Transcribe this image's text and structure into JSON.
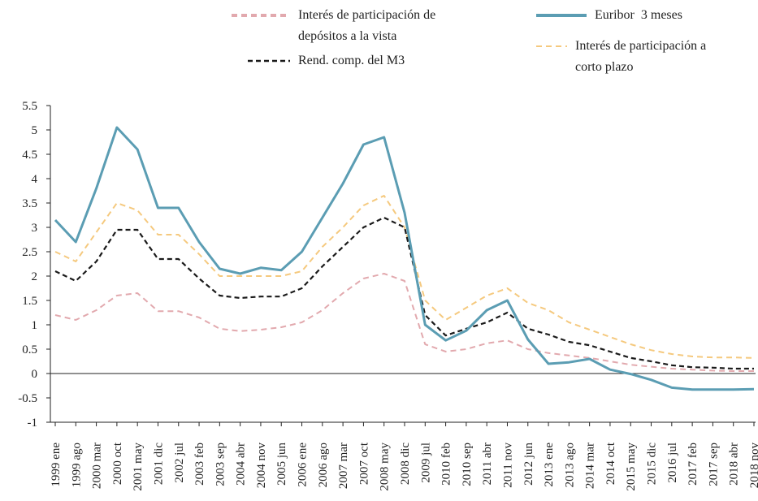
{
  "chart_data": {
    "type": "line",
    "categories": [
      "1999 ene",
      "1999 ago",
      "2000 mar",
      "2000 oct",
      "2001 may",
      "2001 dic",
      "2002 jul",
      "2003 feb",
      "2003 sep",
      "2004 abr",
      "2004 nov",
      "2005 jun",
      "2006 ene",
      "2006 ago",
      "2007 mar",
      "2007 oct",
      "2008 may",
      "2008 dic",
      "2009 jul",
      "2010 feb",
      "2010 sep",
      "2011 abr",
      "2011 nov",
      "2012 jun",
      "2013 ene",
      "2013 ago",
      "2014 mar",
      "2014 oct",
      "2015 may",
      "2015 dic",
      "2016 jul",
      "2017 feb",
      "2017 sep",
      "2018 abr",
      "2018 nov"
    ],
    "series": [
      {
        "name": "Interés de participación de depósitos a la vista",
        "color": "#e2a9ae",
        "style": "dashed",
        "values": [
          1.2,
          1.1,
          1.3,
          1.6,
          1.65,
          1.28,
          1.28,
          1.15,
          0.92,
          0.87,
          0.9,
          0.95,
          1.05,
          1.3,
          1.65,
          1.95,
          2.05,
          1.9,
          0.6,
          0.45,
          0.5,
          0.62,
          0.68,
          0.5,
          0.42,
          0.37,
          0.32,
          0.25,
          0.18,
          0.14,
          0.1,
          0.08,
          0.06,
          0.05,
          0.05
        ]
      },
      {
        "name": "Rend. comp. del M3",
        "color": "#1a1a1a",
        "style": "dashed",
        "values": [
          2.1,
          1.9,
          2.3,
          2.95,
          2.95,
          2.35,
          2.35,
          1.95,
          1.6,
          1.55,
          1.58,
          1.58,
          1.75,
          2.2,
          2.6,
          3.0,
          3.2,
          3.0,
          1.2,
          0.78,
          0.92,
          1.05,
          1.25,
          0.92,
          0.8,
          0.65,
          0.58,
          0.45,
          0.32,
          0.25,
          0.17,
          0.13,
          0.12,
          0.1,
          0.1
        ]
      },
      {
        "name": "Euribor  3 meses",
        "color": "#5b9db3",
        "style": "solid",
        "values": [
          3.15,
          2.7,
          3.8,
          5.05,
          4.6,
          3.4,
          3.4,
          2.7,
          2.15,
          2.05,
          2.17,
          2.12,
          2.5,
          3.2,
          3.9,
          4.7,
          4.85,
          3.3,
          1.0,
          0.68,
          0.88,
          1.3,
          1.5,
          0.7,
          0.2,
          0.23,
          0.3,
          0.08,
          -0.01,
          -0.13,
          -0.29,
          -0.33,
          -0.33,
          -0.33,
          -0.32
        ]
      },
      {
        "name": "Interés de participación a corto plazo",
        "color": "#f5c97e",
        "style": "dashed",
        "values": [
          2.5,
          2.3,
          2.9,
          3.5,
          3.35,
          2.85,
          2.85,
          2.45,
          2.0,
          2.0,
          2.0,
          2.0,
          2.1,
          2.6,
          3.0,
          3.45,
          3.65,
          3.0,
          1.5,
          1.1,
          1.35,
          1.6,
          1.75,
          1.45,
          1.3,
          1.05,
          0.9,
          0.75,
          0.6,
          0.48,
          0.4,
          0.35,
          0.33,
          0.33,
          0.32
        ]
      }
    ],
    "ylim": [
      -1,
      5.5
    ],
    "yticks": [
      -1,
      -0.5,
      0,
      0.5,
      1,
      1.5,
      2,
      2.5,
      3,
      3.5,
      4,
      4.5,
      5,
      5.5
    ]
  }
}
